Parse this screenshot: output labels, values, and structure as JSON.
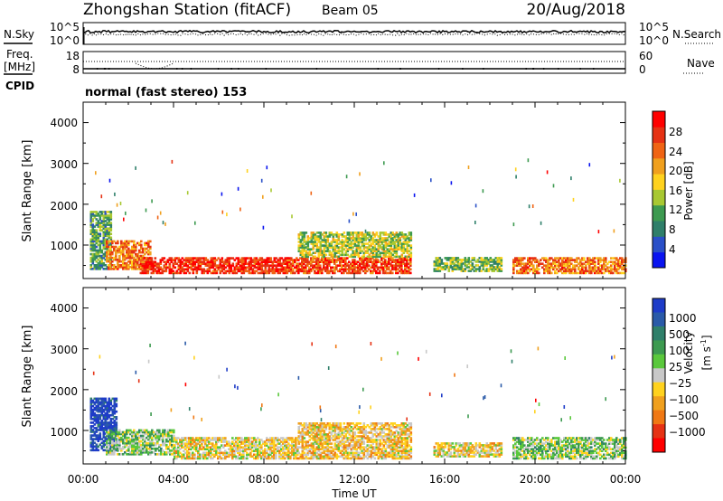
{
  "header": {
    "station": "Zhongshan Station (fitACF)",
    "beam": "Beam 05",
    "date": "20/Aug/2018"
  },
  "top_panels": {
    "nsky_label": "N.Sky",
    "nsearch_label": "N.Search",
    "nsky_ticks": [
      "10^5",
      "10^0"
    ],
    "nsearch_ticks": [
      "10^5",
      "10^0"
    ],
    "freq_label_1": "Freq.",
    "freq_label_2": "[MHz]",
    "freq_ticks": [
      "18",
      "8"
    ],
    "nave_label": "Nave",
    "nave_ticks": [
      "60",
      "0"
    ],
    "cpid_label": "CPID",
    "cpid_text": "normal (fast stereo) 153"
  },
  "axes": {
    "ylabel": "Slant Range [km]",
    "xlabel": "Time UT",
    "yticks": [
      "4000",
      "3000",
      "2000",
      "1000"
    ],
    "xticks": [
      "00:00",
      "04:00",
      "08:00",
      "12:00",
      "16:00",
      "20:00",
      "00:00"
    ]
  },
  "colorbars": {
    "power": {
      "label": "Power [dB]",
      "ticks": [
        "28",
        "24",
        "20",
        "16",
        "12",
        "8",
        "4"
      ],
      "colors": [
        "#0a14f0",
        "#2a50c8",
        "#2f7f6a",
        "#3d9a50",
        "#a8c832",
        "#ffd21e",
        "#f0a01e",
        "#f06414",
        "#e63214",
        "#ff0000"
      ]
    },
    "velocity": {
      "label": "Velocity",
      "unit": "[m s",
      "unit_sup": "-1",
      "unit_end": "]",
      "ticks": [
        "1000",
        "500",
        "100",
        "25",
        "−25",
        "−100",
        "−500",
        "−1000"
      ],
      "colors": [
        "#1e3cc8",
        "#2a5aa8",
        "#2f7f6a",
        "#3d9a50",
        "#5ac83c",
        "#c8c8c8",
        "#ffd21e",
        "#f0a01e",
        "#f07814",
        "#e63214",
        "#ff0000"
      ]
    }
  },
  "chart_data": {
    "type": "heatmap",
    "x_range": [
      "00:00",
      "24:00"
    ],
    "y_range_km": [
      180,
      4500
    ],
    "power_panel": {
      "value_name": "Power [dB]",
      "value_range": [
        0,
        30
      ],
      "regions": [
        {
          "t_start": 0.3,
          "t_end": 1.2,
          "r_min": 400,
          "r_max": 1800,
          "value": 10
        },
        {
          "t_start": 1.0,
          "t_end": 3.0,
          "r_min": 400,
          "r_max": 1100,
          "value": 22
        },
        {
          "t_start": 2.5,
          "t_end": 9.0,
          "r_min": 300,
          "r_max": 700,
          "value": 26
        },
        {
          "t_start": 9.0,
          "t_end": 14.5,
          "r_min": 300,
          "r_max": 700,
          "value": 25
        },
        {
          "t_start": 9.5,
          "t_end": 14.5,
          "r_min": 700,
          "r_max": 1300,
          "value": 14
        },
        {
          "t_start": 15.5,
          "t_end": 18.5,
          "r_min": 350,
          "r_max": 700,
          "value": 12
        },
        {
          "t_start": 19.0,
          "t_end": 24.0,
          "r_min": 300,
          "r_max": 700,
          "value": 22
        }
      ]
    },
    "velocity_panel": {
      "value_name": "Velocity [m s^-1]",
      "value_range": [
        -1000,
        1000
      ],
      "regions": [
        {
          "t_start": 0.3,
          "t_end": 1.5,
          "r_min": 500,
          "r_max": 1800,
          "value": 900
        },
        {
          "t_start": 1.0,
          "t_end": 4.0,
          "r_min": 400,
          "r_max": 1000,
          "value": 150
        },
        {
          "t_start": 4.0,
          "t_end": 9.5,
          "r_min": 300,
          "r_max": 800,
          "value": -150
        },
        {
          "t_start": 9.5,
          "t_end": 14.5,
          "r_min": 300,
          "r_max": 1200,
          "value": -200
        },
        {
          "t_start": 15.5,
          "t_end": 18.5,
          "r_min": 350,
          "r_max": 700,
          "value": -150
        },
        {
          "t_start": 19.0,
          "t_end": 24.0,
          "r_min": 300,
          "r_max": 800,
          "value": 150
        }
      ]
    }
  }
}
